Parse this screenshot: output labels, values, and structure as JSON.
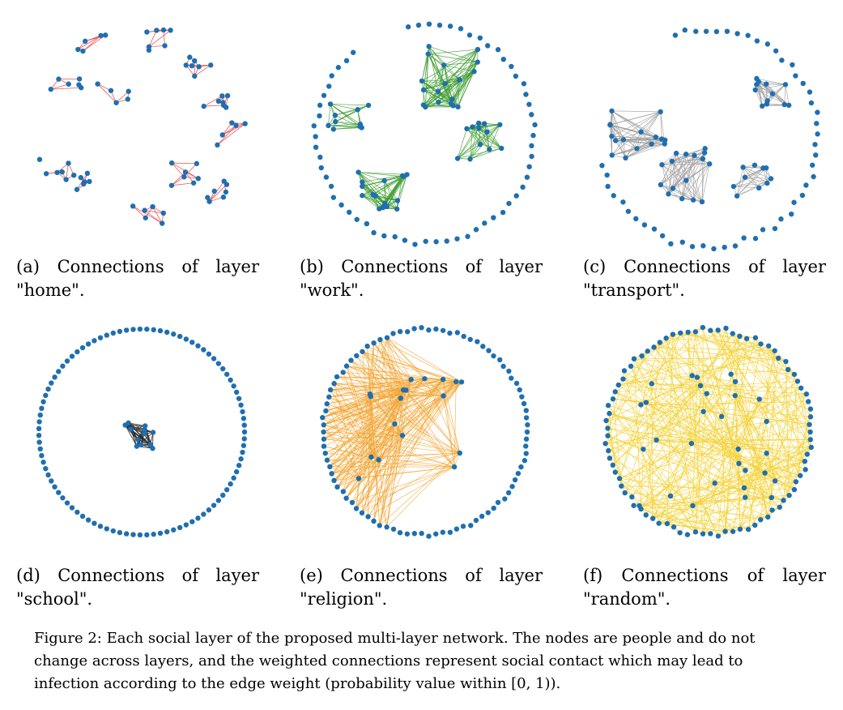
{
  "panels": [
    {
      "caption": "(a) Connections of layer \"home\".",
      "edge_color": "#e8474a"
    },
    {
      "caption": "(b) Connections of layer \"work\".",
      "edge_color": "#3a9a2a"
    },
    {
      "caption": "(c) Connections of layer \"transport\".",
      "edge_color": "#9a9a9a"
    },
    {
      "caption": "(d) Connections of layer \"school\".",
      "edge_color": "#2b2b2b"
    },
    {
      "caption": "(e) Connections of layer \"religion\".",
      "edge_color": "#f2a12b"
    },
    {
      "caption": "(f) Connections of layer \"random\".",
      "edge_color": "#f4d236"
    }
  ],
  "node_color": "#1f6fb0",
  "figure_caption": "Figure 2:  Each social layer of the proposed multi-layer network. The nodes are people and do not change across layers, and the weighted connections represent social contact which may lead to infection according to the edge weight (probability value within [0, 1))."
}
